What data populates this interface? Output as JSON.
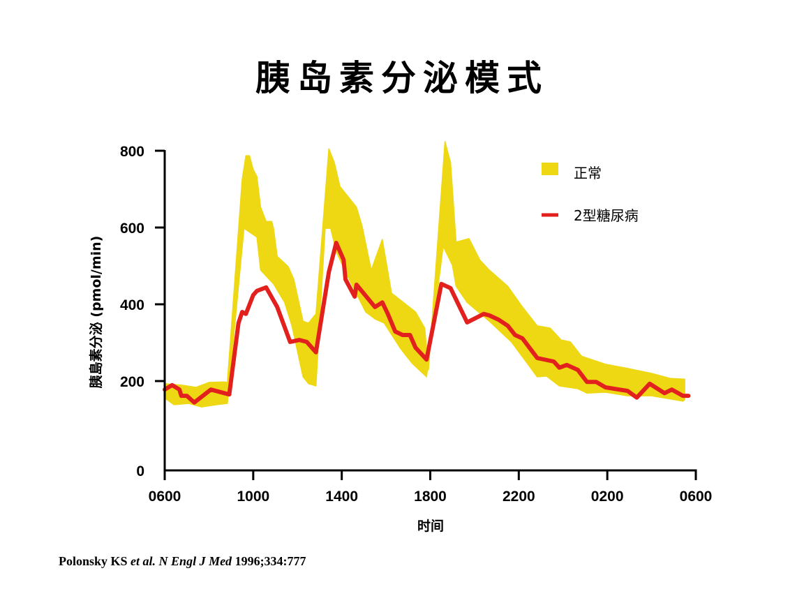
{
  "chart_data": {
    "type": "area",
    "title": "胰岛素分泌模式",
    "xlabel": "时间",
    "ylabel": "胰島素分泌 (pmol/min)",
    "x_ticks": [
      "0600",
      "1000",
      "1400",
      "1800",
      "2200",
      "0200",
      "0600"
    ],
    "y_ticks": [
      0,
      200,
      400,
      600,
      800
    ],
    "ylim": [
      0,
      800
    ],
    "grid": false,
    "legend_position": "top-right",
    "colors": {
      "normal_band": "#EED814",
      "type2": "#E2201E"
    },
    "series": [
      {
        "name": "正常",
        "kind": "range-band",
        "upper": [
          [
            "0600",
            194
          ],
          [
            "0645",
            191
          ],
          [
            "0725",
            186
          ],
          [
            "0800",
            197
          ],
          [
            "0840",
            198
          ],
          [
            "0850",
            197
          ],
          [
            "0930",
            725
          ],
          [
            "0940",
            787
          ],
          [
            "0950",
            787
          ],
          [
            "1000",
            751
          ],
          [
            "1010",
            733
          ],
          [
            "1020",
            653
          ],
          [
            "1035",
            616
          ],
          [
            "1050",
            616
          ],
          [
            "1055",
            598
          ],
          [
            "1105",
            525
          ],
          [
            "1135",
            498
          ],
          [
            "1150",
            465
          ],
          [
            "1215",
            356
          ],
          [
            "1230",
            351
          ],
          [
            "1245",
            369
          ],
          [
            "1250",
            375
          ],
          [
            "1325",
            805
          ],
          [
            "1340",
            769
          ],
          [
            "1355",
            707
          ],
          [
            "1440",
            653
          ],
          [
            "1455",
            605
          ],
          [
            "1520",
            489
          ],
          [
            "1550",
            569
          ],
          [
            "1615",
            429
          ],
          [
            "1720",
            380
          ],
          [
            "1745",
            338
          ],
          [
            "1755",
            229
          ],
          [
            "1840",
            824
          ],
          [
            "1855",
            769
          ],
          [
            "1910",
            562
          ],
          [
            "1945",
            571
          ],
          [
            "2015",
            515
          ],
          [
            "2040",
            489
          ],
          [
            "2130",
            447
          ],
          [
            "2210",
            393
          ],
          [
            "2250",
            344
          ],
          [
            "2325",
            338
          ],
          [
            "2355",
            307
          ],
          [
            "0020",
            302
          ],
          [
            "0050",
            265
          ],
          [
            "0155",
            244
          ],
          [
            "0255",
            233
          ],
          [
            "0400",
            220
          ],
          [
            "0450",
            207
          ],
          [
            "0530",
            205
          ]
        ],
        "lower": [
          [
            "0600",
            162
          ],
          [
            "0625",
            147
          ],
          [
            "0705",
            150
          ],
          [
            "0740",
            142
          ],
          [
            "0820",
            147
          ],
          [
            "0850",
            150
          ],
          [
            "0935",
            598
          ],
          [
            "1010",
            575
          ],
          [
            "1020",
            489
          ],
          [
            "1055",
            453
          ],
          [
            "1125",
            405
          ],
          [
            "1145",
            344
          ],
          [
            "1215",
            211
          ],
          [
            "1230",
            194
          ],
          [
            "1250",
            189
          ],
          [
            "1315",
            598
          ],
          [
            "1330",
            598
          ],
          [
            "1345",
            538
          ],
          [
            "1410",
            484
          ],
          [
            "1505",
            380
          ],
          [
            "1530",
            362
          ],
          [
            "1555",
            351
          ],
          [
            "1640",
            284
          ],
          [
            "1710",
            247
          ],
          [
            "1750",
            211
          ],
          [
            "1835",
            551
          ],
          [
            "1900",
            502
          ],
          [
            "1910",
            447
          ],
          [
            "1940",
            405
          ],
          [
            "2040",
            356
          ],
          [
            "2140",
            302
          ],
          [
            "2250",
            211
          ],
          [
            "2315",
            213
          ],
          [
            "2350",
            189
          ],
          [
            "0040",
            183
          ],
          [
            "0105",
            173
          ],
          [
            "0155",
            175
          ],
          [
            "0255",
            167
          ],
          [
            "0400",
            167
          ],
          [
            "0525",
            155
          ],
          [
            "0530",
            158
          ]
        ]
      },
      {
        "name": "2型糖尿病",
        "kind": "line",
        "points": [
          [
            "0600",
            181
          ],
          [
            "0620",
            191
          ],
          [
            "0640",
            181
          ],
          [
            "0645",
            167
          ],
          [
            "0700",
            167
          ],
          [
            "0720",
            152
          ],
          [
            "0805",
            181
          ],
          [
            "0855",
            170
          ],
          [
            "0920",
            351
          ],
          [
            "0930",
            380
          ],
          [
            "0940",
            375
          ],
          [
            "1000",
            424
          ],
          [
            "1010",
            435
          ],
          [
            "1035",
            444
          ],
          [
            "1105",
            393
          ],
          [
            "1140",
            302
          ],
          [
            "1205",
            307
          ],
          [
            "1225",
            302
          ],
          [
            "1250",
            275
          ],
          [
            "1325",
            484
          ],
          [
            "1345",
            560
          ],
          [
            "1405",
            516
          ],
          [
            "1410",
            465
          ],
          [
            "1435",
            420
          ],
          [
            "1440",
            451
          ],
          [
            "1530",
            393
          ],
          [
            "1550",
            405
          ],
          [
            "1605",
            375
          ],
          [
            "1625",
            329
          ],
          [
            "1645",
            320
          ],
          [
            "1705",
            320
          ],
          [
            "1720",
            287
          ],
          [
            "1750",
            256
          ],
          [
            "1830",
            453
          ],
          [
            "1855",
            442
          ],
          [
            "1940",
            353
          ],
          [
            "2025",
            375
          ],
          [
            "2040",
            371
          ],
          [
            "2105",
            360
          ],
          [
            "2130",
            344
          ],
          [
            "2150",
            320
          ],
          [
            "2210",
            311
          ],
          [
            "2250",
            260
          ],
          [
            "2335",
            251
          ],
          [
            "2350",
            235
          ],
          [
            "0010",
            242
          ],
          [
            "0040",
            229
          ],
          [
            "0105",
            198
          ],
          [
            "0130",
            198
          ],
          [
            "0155",
            186
          ],
          [
            "0255",
            178
          ],
          [
            "0320",
            163
          ],
          [
            "0355",
            194
          ],
          [
            "0435",
            173
          ],
          [
            "0455",
            181
          ],
          [
            "0525",
            167
          ],
          [
            "0540",
            167
          ]
        ]
      }
    ]
  },
  "citation": {
    "authors": "Polonsky KS ",
    "etal": "et al.",
    "journal": " N Engl J Med",
    "ref": " 1996;334:777"
  }
}
